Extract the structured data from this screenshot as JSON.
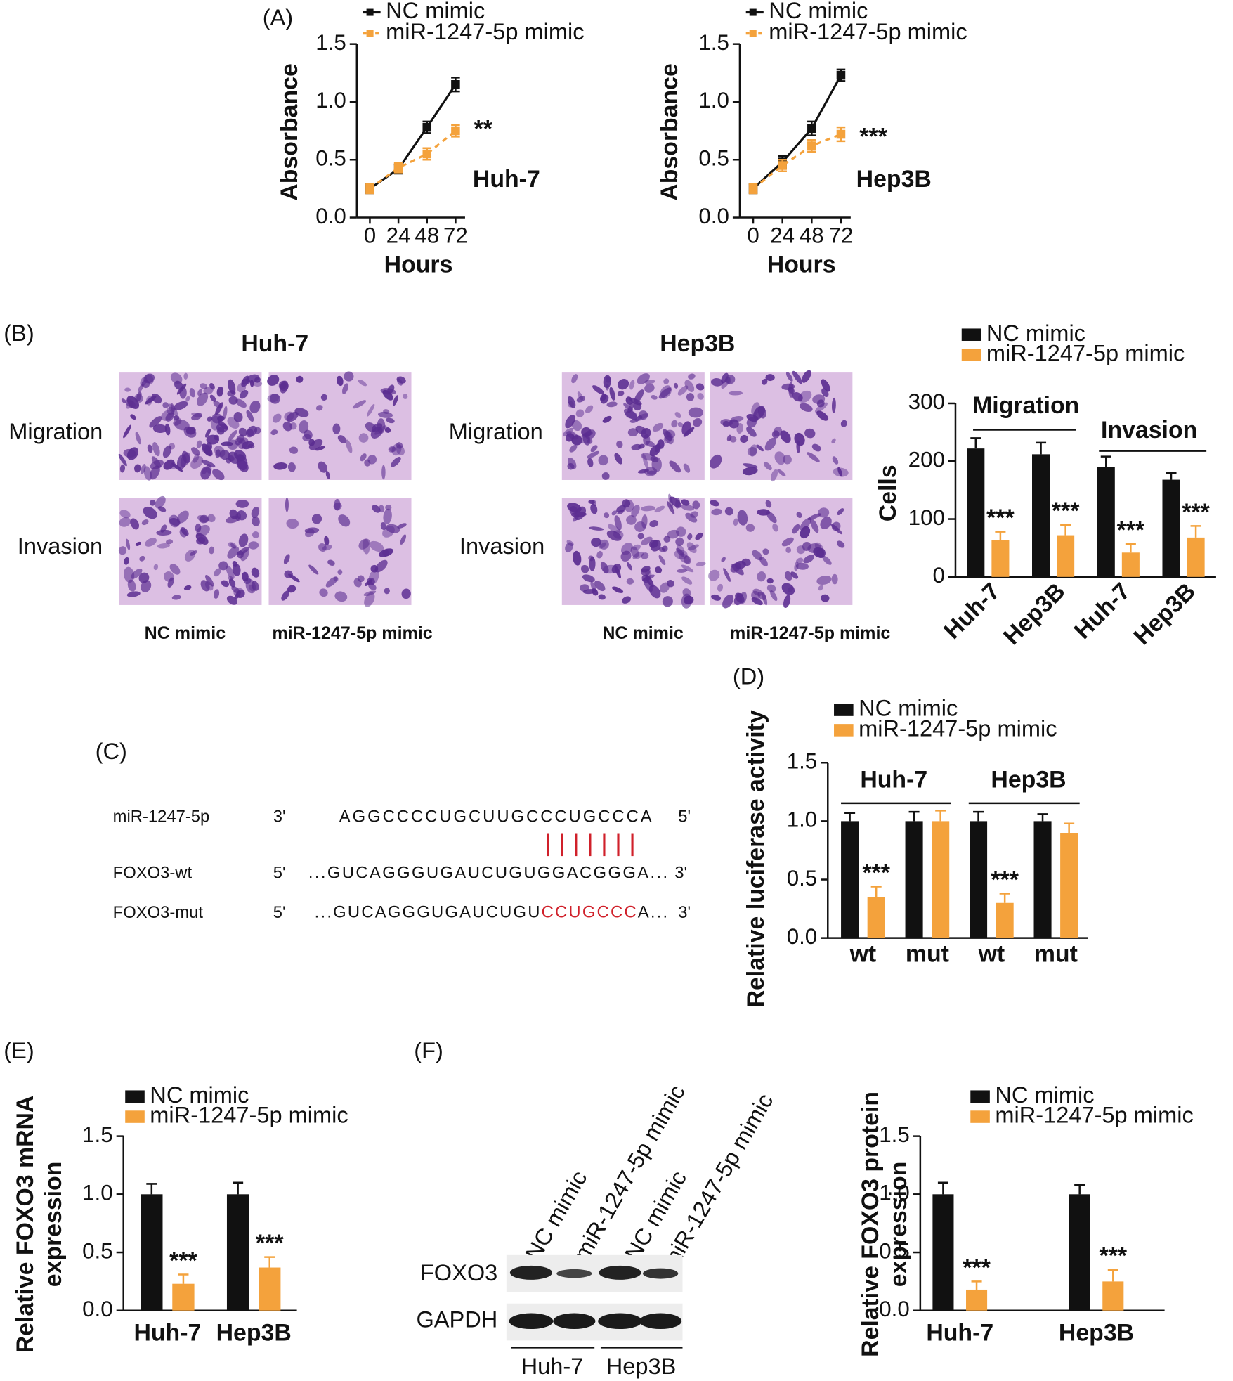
{
  "panel_labels": [
    "(A)",
    "(B)",
    "(C)",
    "(D)",
    "(E)",
    "(F)"
  ],
  "transwell": [
    {
      "title": "Huh-7",
      "rows": [
        "Migration",
        "Invasion"
      ],
      "columns": [
        "NC mimic",
        "miR-1247-5p mimic"
      ]
    },
    {
      "title": "Hep3B",
      "rows": [
        "Migration",
        "Invasion"
      ],
      "columns": [
        "NC mimic",
        "miR-1247-5p mimic"
      ]
    }
  ],
  "sequence": {
    "rows": [
      {
        "name": "miR-1247-5p",
        "left": "3'",
        "seq": "AGGCCCCUGCUUGCCCUGCCCA",
        "right": "5'"
      },
      {
        "name": "FOXO3-wt",
        "left": "5'",
        "seq": "...GUCAGGGUGAUCUGUGGACGGGA...",
        "right": "3'"
      },
      {
        "name": "FOXO3-mut",
        "left": "5'",
        "seq": "...GUCAGGGUGAUCUGU",
        "mutation": "CCUGCCC",
        "seq_end": "A...",
        "right": "3'"
      }
    ]
  },
  "blot": {
    "lanes": [
      "NC mimic",
      "miR-1247-5p mimic",
      "NC mimic",
      "miR-1247-5p mimic"
    ],
    "proteins": [
      "FOXO3",
      "GAPDH"
    ],
    "groups": [
      "Huh-7",
      "Hep3B"
    ]
  },
  "chart_data": [
    {
      "type": "line",
      "note": "Huh-7",
      "xlabel": "Hours",
      "ylabel": "Absorbance",
      "x": [
        0,
        24,
        48,
        72
      ],
      "xlim": [
        -11,
        80
      ],
      "xticks": [
        0,
        24,
        48,
        72
      ],
      "ylim": [
        0,
        1.5
      ],
      "yticks": [
        {
          "value": 0,
          "label": "0.0"
        },
        0.5,
        {
          "value": 1,
          "label": "1.0"
        },
        1.5
      ],
      "series": [
        {
          "name": "NC mimic",
          "color": "#111111",
          "style": "solid",
          "values": [
            0.25,
            0.42,
            0.78,
            1.15
          ],
          "errors": [
            0.04,
            0.04,
            0.05,
            0.06
          ]
        },
        {
          "name": "miR-1247-5p mimic",
          "color": "#f4a23c",
          "style": "dashed",
          "values": [
            0.25,
            0.43,
            0.55,
            0.75
          ],
          "errors": [
            0.04,
            0.04,
            0.05,
            0.05
          ],
          "significance": "**"
        }
      ]
    },
    {
      "type": "line",
      "note": "Hep3B",
      "xlabel": "Hours",
      "ylabel": "Absorbance",
      "x": [
        0,
        24,
        48,
        72
      ],
      "xlim": [
        -11,
        80
      ],
      "xticks": [
        0,
        24,
        48,
        72
      ],
      "ylim": [
        0,
        1.5
      ],
      "yticks": [
        {
          "value": 0,
          "label": "0.0"
        },
        0.5,
        {
          "value": 1,
          "label": "1.0"
        },
        1.5
      ],
      "series": [
        {
          "name": "NC mimic",
          "color": "#111111",
          "style": "solid",
          "values": [
            0.25,
            0.48,
            0.77,
            1.23
          ],
          "errors": [
            0.04,
            0.05,
            0.06,
            0.05
          ]
        },
        {
          "name": "miR-1247-5p mimic",
          "color": "#f4a23c",
          "style": "dashed",
          "values": [
            0.25,
            0.45,
            0.62,
            0.72
          ],
          "errors": [
            0.04,
            0.05,
            0.05,
            0.06
          ],
          "significance": "***"
        }
      ]
    },
    {
      "type": "bar",
      "ylabel": "Cells",
      "categories": [
        "Huh-7",
        "Hep3B",
        "Huh-7",
        "Hep3B"
      ],
      "groups": [
        "Migration",
        "Invasion"
      ],
      "ylim": [
        0,
        300
      ],
      "yticks": [
        0,
        100,
        200,
        300
      ],
      "series": [
        {
          "name": "NC mimic",
          "color": "#111111",
          "values": [
            222,
            212,
            190,
            168
          ],
          "errors": [
            18,
            20,
            18,
            12
          ]
        },
        {
          "name": "miR-1247-5p mimic",
          "color": "#f4a23c",
          "values": [
            63,
            72,
            42,
            68
          ],
          "errors": [
            15,
            18,
            15,
            20
          ],
          "significance": [
            "***",
            "***",
            "***",
            "***"
          ]
        }
      ]
    },
    {
      "type": "bar",
      "ylabel": "Relative luciferase activity",
      "categories": [
        "wt",
        "mut",
        "wt",
        "mut"
      ],
      "groups": [
        "Huh-7",
        "Hep3B"
      ],
      "ylim": [
        0,
        1.5
      ],
      "yticks": [
        {
          "value": 0,
          "label": "0.0"
        },
        0.5,
        {
          "value": 1,
          "label": "1.0"
        },
        1.5
      ],
      "series": [
        {
          "name": "NC mimic",
          "color": "#111111",
          "values": [
            1,
            1,
            1,
            1
          ],
          "errors": [
            0.07,
            0.08,
            0.08,
            0.06
          ]
        },
        {
          "name": "miR-1247-5p mimic",
          "color": "#f4a23c",
          "values": [
            0.35,
            1.0,
            0.3,
            0.9
          ],
          "errors": [
            0.09,
            0.09,
            0.08,
            0.08
          ],
          "significance": [
            "***",
            null,
            "***",
            null
          ]
        }
      ]
    },
    {
      "type": "bar",
      "ylabel": [
        "Relative FOXO3 mRNA",
        "expression"
      ],
      "categories": [
        "Huh-7",
        "Hep3B"
      ],
      "ylim": [
        0,
        1.5
      ],
      "yticks": [
        {
          "value": 0,
          "label": "0.0"
        },
        0.5,
        {
          "value": 1,
          "label": "1.0"
        },
        1.5
      ],
      "series": [
        {
          "name": "NC mimic",
          "color": "#111111",
          "values": [
            1,
            1
          ],
          "errors": [
            0.09,
            0.1
          ]
        },
        {
          "name": "miR-1247-5p mimic",
          "color": "#f4a23c",
          "values": [
            0.23,
            0.37
          ],
          "errors": [
            0.08,
            0.09
          ],
          "significance": [
            "***",
            "***"
          ]
        }
      ]
    },
    {
      "type": "bar",
      "ylabel": [
        "Relative FOXO3 protein",
        "expression"
      ],
      "categories": [
        "Huh-7",
        "Hep3B"
      ],
      "ylim": [
        0,
        1.5
      ],
      "yticks": [
        {
          "value": 0,
          "label": "0.0"
        },
        0.5,
        {
          "value": 1,
          "label": "1.0"
        },
        1.5
      ],
      "series": [
        {
          "name": "NC mimic",
          "color": "#111111",
          "values": [
            1,
            1
          ],
          "errors": [
            0.1,
            0.08
          ]
        },
        {
          "name": "miR-1247-5p mimic",
          "color": "#f4a23c",
          "values": [
            0.18,
            0.25
          ],
          "errors": [
            0.07,
            0.1
          ],
          "significance": [
            "***",
            "***"
          ]
        }
      ]
    }
  ]
}
